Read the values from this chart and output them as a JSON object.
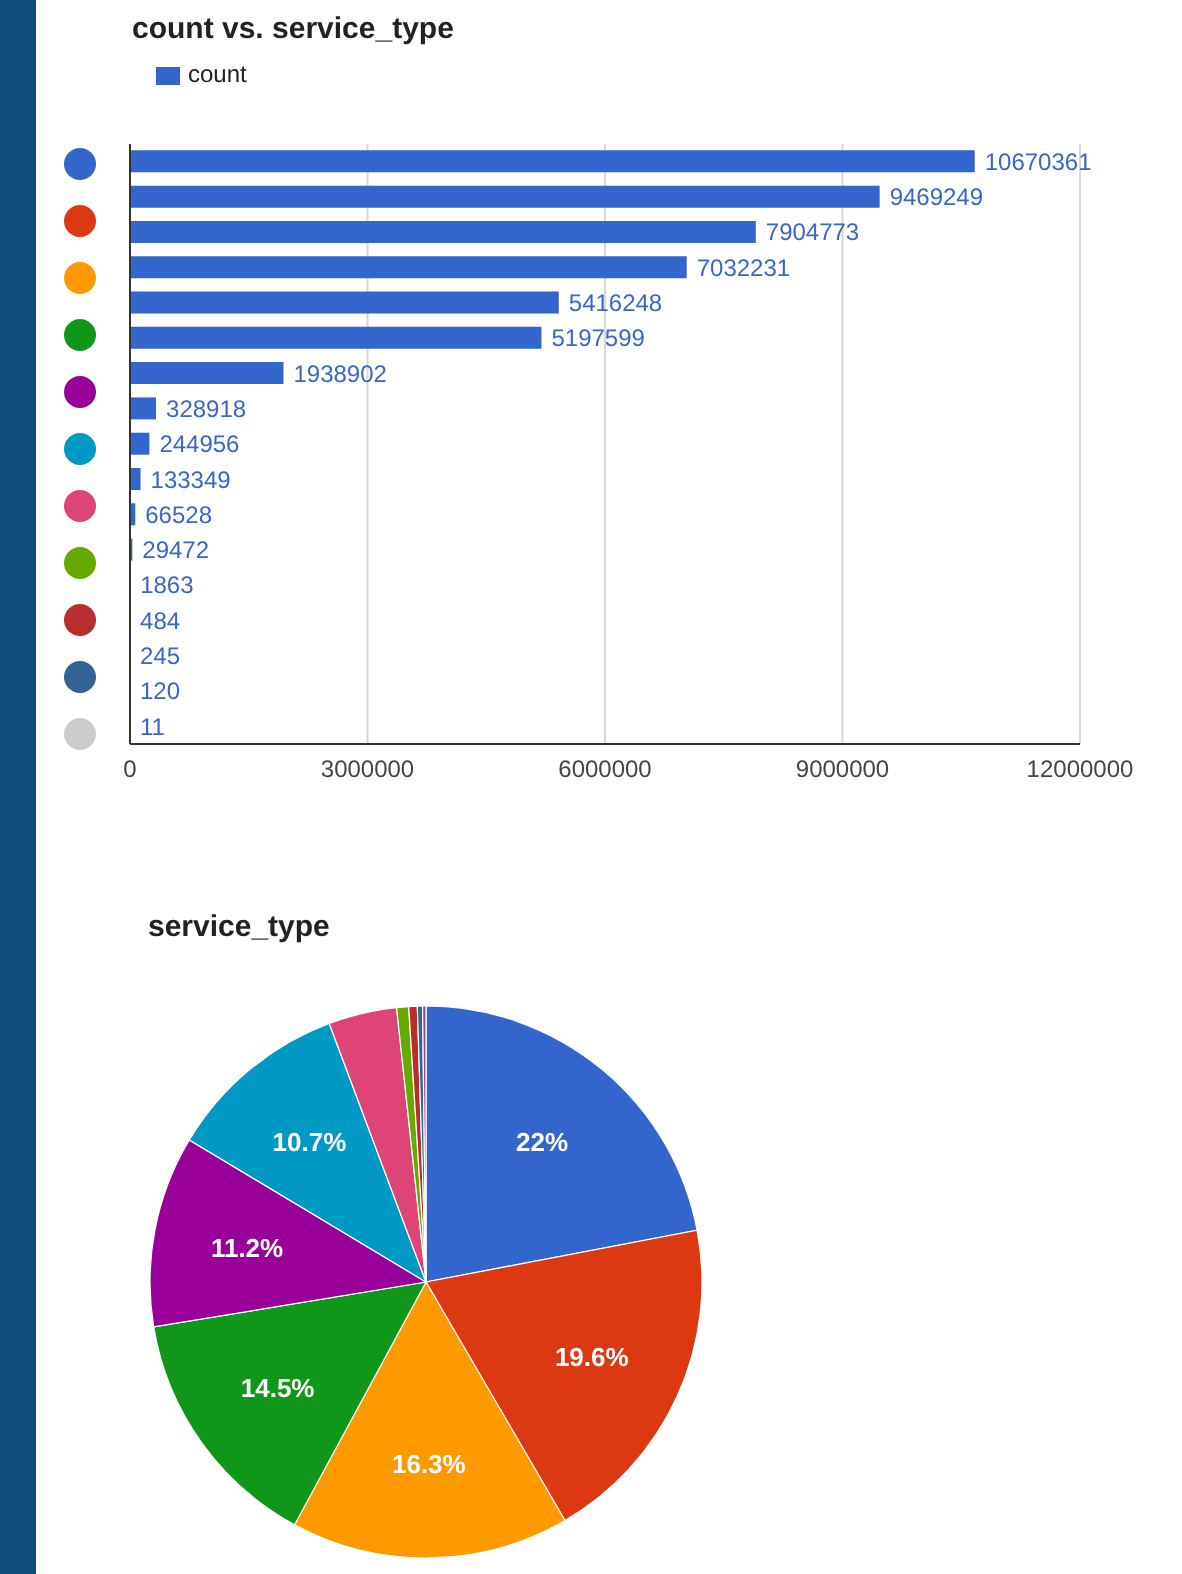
{
  "chart_data": [
    {
      "type": "bar",
      "title": "count vs. service_type",
      "orientation": "horizontal",
      "categories": [
        null,
        null,
        null,
        null,
        null,
        null,
        null,
        null,
        null,
        null,
        null,
        null,
        null,
        null,
        null,
        null,
        null
      ],
      "series": [
        {
          "name": "count",
          "color": "#3366cc",
          "values": [
            10670361,
            9469249,
            7904773,
            7032231,
            5416248,
            5197599,
            1938902,
            328918,
            244956,
            133349,
            66528,
            29472,
            1863,
            484,
            245,
            120,
            11
          ]
        }
      ],
      "xlim": [
        0,
        12000000
      ],
      "xticks": [
        0,
        3000000,
        6000000,
        9000000,
        12000000
      ],
      "data_labels": true,
      "grid": "x",
      "legend": "top left"
    },
    {
      "type": "pie",
      "title": "service_type",
      "categories": [
        null,
        null,
        null,
        null,
        null,
        null,
        null,
        null,
        null,
        null,
        null
      ],
      "values": [
        22,
        19.6,
        16.3,
        14.5,
        11.2,
        10.7,
        4.0,
        0.7,
        0.5,
        0.3,
        0.2
      ],
      "colors": [
        "#3366cc",
        "#dc3912",
        "#ff9900",
        "#109618",
        "#990099",
        "#0099c6",
        "#dd4477",
        "#66aa00",
        "#b82e2e",
        "#316395",
        "#994499"
      ],
      "value_labels": [
        "22%",
        "19.6%",
        "16.3%",
        "14.5%",
        "11.2%",
        "10.7%",
        null,
        null,
        null,
        null,
        null
      ]
    }
  ]
}
